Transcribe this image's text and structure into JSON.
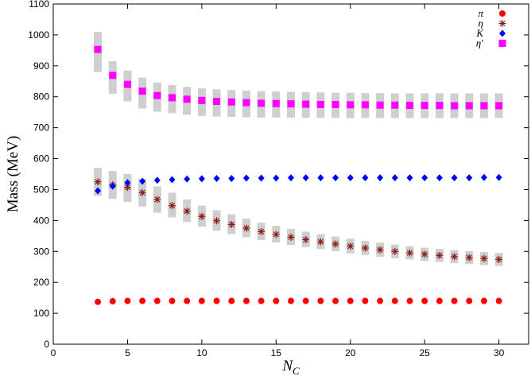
{
  "chart_data": {
    "type": "scatter",
    "xlabel": "N",
    "xlabel_sub": "C",
    "ylabel": "Mass (MeV)",
    "xlim": [
      0,
      32
    ],
    "ylim": [
      0,
      1100
    ],
    "xticks": [
      0,
      5,
      10,
      15,
      20,
      25,
      30
    ],
    "yticks": [
      0,
      100,
      200,
      300,
      400,
      500,
      600,
      700,
      800,
      900,
      1000,
      1100
    ],
    "grid": false,
    "legend_position": "top-right",
    "x": [
      3,
      4,
      5,
      6,
      7,
      8,
      9,
      10,
      11,
      12,
      13,
      14,
      15,
      16,
      17,
      18,
      19,
      20,
      21,
      22,
      23,
      24,
      25,
      26,
      27,
      28,
      29,
      30
    ],
    "series": [
      {
        "name": "π",
        "marker": "circle",
        "color": "#ff0000",
        "values": [
          137,
          139,
          140,
          140,
          140,
          140,
          140,
          140,
          140,
          140,
          140,
          140,
          140,
          140,
          140,
          140,
          140,
          140,
          140,
          140,
          140,
          140,
          140,
          140,
          140,
          140,
          140,
          140
        ]
      },
      {
        "name": "η",
        "marker": "asterisk",
        "color": "#8b1a1a",
        "values": [
          525,
          515,
          507,
          490,
          468,
          448,
          430,
          413,
          399,
          387,
          375,
          364,
          355,
          346,
          338,
          331,
          324,
          317,
          311,
          305,
          300,
          295,
          291,
          287,
          283,
          280,
          277,
          274
        ],
        "band_low": [
          480,
          470,
          460,
          445,
          425,
          410,
          395,
          380,
          367,
          356,
          346,
          337,
          329,
          321,
          314,
          307,
          301,
          294,
          289,
          283,
          278,
          274,
          269,
          266,
          262,
          259,
          256,
          253
        ],
        "band_high": [
          570,
          560,
          550,
          535,
          510,
          490,
          468,
          448,
          433,
          420,
          406,
          393,
          383,
          373,
          364,
          356,
          348,
          341,
          334,
          328,
          322,
          317,
          312,
          308,
          304,
          301,
          298,
          295
        ]
      },
      {
        "name": "K",
        "marker": "diamond",
        "color": "#0000ff",
        "values": [
          496,
          511,
          522,
          527,
          530,
          532,
          534,
          535,
          536,
          536,
          537,
          537,
          537,
          538,
          538,
          538,
          538,
          538,
          538,
          538,
          538,
          538,
          538,
          538,
          538,
          538,
          539,
          539
        ]
      },
      {
        "name": "η′",
        "marker": "square",
        "color": "#ff00ff",
        "values": [
          953,
          869,
          840,
          818,
          804,
          797,
          792,
          788,
          785,
          783,
          781,
          779,
          778,
          777,
          776,
          775,
          775,
          774,
          774,
          773,
          773,
          772,
          772,
          772,
          771,
          771,
          771,
          771
        ],
        "band_low": [
          880,
          810,
          785,
          762,
          752,
          747,
          742,
          738,
          736,
          735,
          734,
          733,
          733,
          732,
          732,
          732,
          732,
          731,
          731,
          731,
          731,
          731,
          731,
          731,
          731,
          731,
          731,
          731
        ],
        "band_high": [
          1010,
          915,
          885,
          862,
          846,
          838,
          832,
          827,
          824,
          822,
          820,
          818,
          817,
          816,
          815,
          814,
          813,
          813,
          812,
          812,
          811,
          811,
          811,
          811,
          811,
          811,
          811,
          811
        ]
      }
    ]
  }
}
